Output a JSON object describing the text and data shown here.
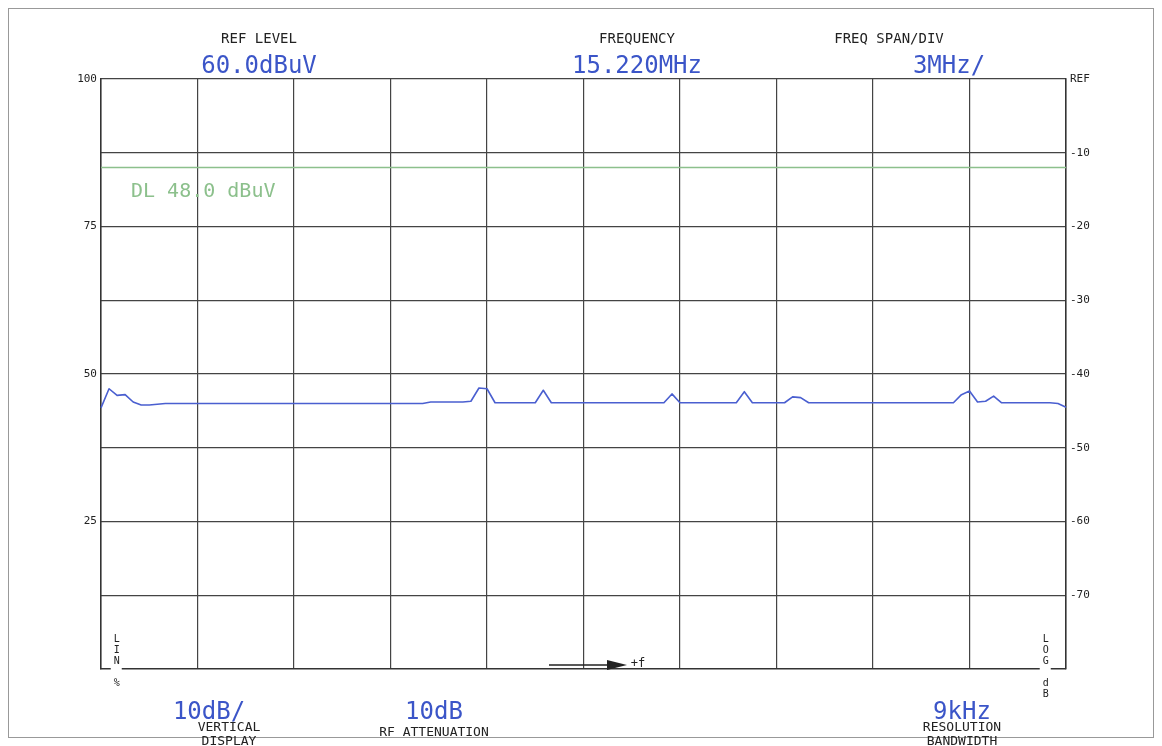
{
  "chart_data": {
    "type": "line",
    "tick_labels": "y",
    "grid": true,
    "legend": false,
    "categories": [
      null,
      null,
      null,
      null,
      null,
      null,
      null,
      null,
      null,
      null,
      null,
      null,
      null,
      null,
      null,
      null,
      null,
      null,
      null,
      null,
      null,
      null,
      null,
      null,
      null,
      null,
      null,
      null,
      null,
      null,
      null,
      null,
      null,
      null,
      null,
      null,
      null,
      null,
      null,
      null,
      null,
      null,
      null,
      null,
      null,
      null,
      null,
      null,
      null,
      null,
      null,
      null,
      null,
      null,
      null,
      null,
      null,
      null,
      null,
      null,
      null,
      null,
      null,
      null,
      null,
      null,
      null,
      null,
      null,
      null,
      null,
      null,
      null,
      null,
      null,
      null,
      null,
      null,
      null,
      null,
      null,
      null,
      null,
      null,
      null,
      null,
      null,
      null,
      null,
      null,
      null,
      null,
      null,
      null,
      null,
      null,
      null,
      null,
      null,
      null,
      null,
      null,
      null,
      null,
      null,
      null,
      null,
      null,
      null,
      null,
      null,
      null,
      null,
      null,
      null,
      null,
      null,
      null,
      null,
      null,
      null
    ],
    "ylim": [
      0,
      100
    ],
    "yticks": [
      25,
      50,
      75,
      100
    ],
    "y2lim": [
      -80,
      0
    ],
    "y2ticks": [
      -70,
      -60,
      -50,
      -40,
      -30,
      -20,
      -10,
      {
        "value": 0,
        "label": "REF"
      }
    ],
    "series": [
      {
        "axis": "y2",
        "color": "#4a5fd0",
        "values": [
          -44.6,
          -42.0,
          -42.9,
          -42.8,
          -43.8,
          -44.2,
          -44.2,
          -44.1,
          -44.0,
          -44.0,
          -44.0,
          -44.0,
          -44.0,
          -44.0,
          -44.0,
          -44.0,
          -44.0,
          -44.0,
          -44.0,
          -44.0,
          -44.0,
          -44.0,
          -44.0,
          -44.0,
          -44.0,
          -44.0,
          -44.0,
          -44.0,
          -44.0,
          -44.0,
          -44.0,
          -44.0,
          -44.0,
          -44.0,
          -44.0,
          -44.0,
          -44.0,
          -44.0,
          -44.0,
          -44.0,
          -44.0,
          -43.8,
          -43.8,
          -43.8,
          -43.8,
          -43.8,
          -43.7,
          -41.9,
          -42.0,
          -43.9,
          -43.9,
          -43.9,
          -43.9,
          -43.9,
          -43.9,
          -42.2,
          -43.9,
          -43.9,
          -43.9,
          -43.9,
          -43.9,
          -43.9,
          -43.9,
          -43.9,
          -43.9,
          -43.9,
          -43.9,
          -43.9,
          -43.9,
          -43.9,
          -43.9,
          -42.7,
          -43.9,
          -43.9,
          -43.9,
          -43.9,
          -43.9,
          -43.9,
          -43.9,
          -43.9,
          -42.4,
          -43.9,
          -43.9,
          -43.9,
          -43.9,
          -43.9,
          -43.1,
          -43.2,
          -43.9,
          -43.9,
          -43.9,
          -43.9,
          -43.9,
          -43.9,
          -43.9,
          -43.9,
          -43.9,
          -43.9,
          -43.9,
          -43.9,
          -43.9,
          -43.9,
          -43.9,
          -43.9,
          -43.9,
          -43.9,
          -43.9,
          -42.8,
          -42.3,
          -43.8,
          -43.7,
          -43.0,
          -43.9,
          -43.9,
          -43.9,
          -43.9,
          -43.9,
          -43.9,
          -43.9,
          -44.0,
          -44.5
        ]
      }
    ],
    "ref_lines": [
      {
        "axis": "y2",
        "value": -12,
        "label": "DL 48.0 dBuV",
        "color": "#8cc08c"
      }
    ],
    "annotations": [
      "REF LEVEL",
      "60.0dBuV",
      "FREQUENCY",
      "15.220MHz",
      "FREQ SPAN/DIV",
      "3MHz/",
      "10dB/",
      "VERTICAL DISPLAY",
      "10dB",
      "RF ATTENUATION",
      "9kHz",
      "RESOLUTION BANDWIDTH",
      "LIN %",
      "LOG dB",
      "+f"
    ]
  }
}
